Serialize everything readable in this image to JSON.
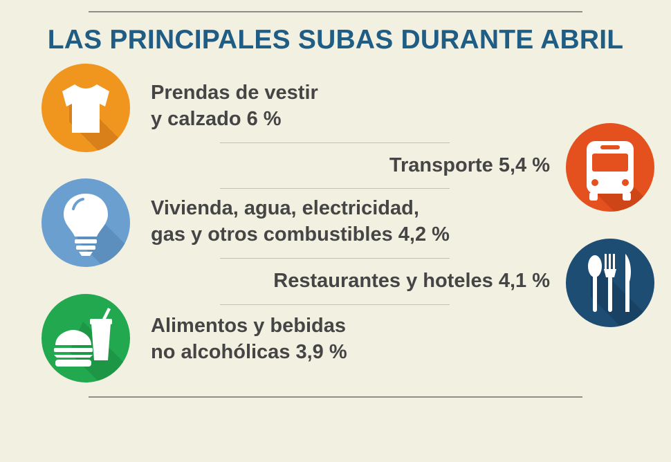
{
  "title": "LAS PRINCIPALES SUBAS DURANTE ABRIL",
  "colors": {
    "background": "#f1f0e1",
    "title": "#1f5d85",
    "text": "#454545",
    "clothing": "#f0961e",
    "transport": "#e4501e",
    "housing": "#6b9fcf",
    "restaurants": "#1e4d74",
    "food": "#22a84f"
  },
  "items": [
    {
      "icon": "tshirt-icon",
      "line1": "Prendas de vestir",
      "line2": "y calzado 6 %"
    },
    {
      "icon": "bus-icon",
      "line1": "Transporte 5,4 %"
    },
    {
      "icon": "lightbulb-icon",
      "line1": "Vivienda, agua, electricidad,",
      "line2": "gas y otros combustibles  4,2 %"
    },
    {
      "icon": "cutlery-icon",
      "line1": "Restaurantes y hoteles  4,1 %"
    },
    {
      "icon": "burger-drink-icon",
      "line1": "Alimentos y bebidas",
      "line2": "no alcohólicas  3,9 %"
    }
  ]
}
